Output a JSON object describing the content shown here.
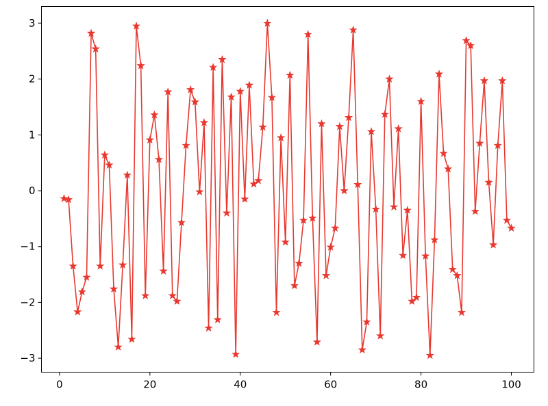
{
  "chart_data": {
    "type": "line",
    "title": "",
    "xlabel": "",
    "ylabel": "",
    "xlim": [
      -4,
      105
    ],
    "ylim": [
      -3.25,
      3.3
    ],
    "xticks": [
      0,
      20,
      40,
      60,
      80,
      100
    ],
    "yticks": [
      -3,
      -2,
      -1,
      0,
      1,
      2,
      3
    ],
    "xtick_labels": [
      "0",
      "20",
      "40",
      "60",
      "80",
      "100"
    ],
    "ytick_labels": [
      "−3",
      "−2",
      "−1",
      "0",
      "1",
      "2",
      "3"
    ],
    "grid": false,
    "legend": "none",
    "marker": "star",
    "color": "#e8382f",
    "series": [
      {
        "x": [
          1,
          2,
          3,
          4,
          5,
          6,
          7,
          8,
          9,
          10,
          11,
          12,
          13,
          14,
          15,
          16,
          17,
          18,
          19,
          20,
          21,
          22,
          23,
          24,
          25,
          26,
          27,
          28,
          29,
          30,
          31,
          32,
          33,
          34,
          35,
          36,
          37,
          38,
          39,
          40,
          41,
          42,
          43,
          44,
          45,
          46,
          47,
          48,
          49,
          50,
          51,
          52,
          53,
          54,
          55,
          56,
          57,
          58,
          59,
          60,
          61,
          62,
          63,
          64,
          65,
          66,
          67,
          68,
          69,
          70,
          71,
          72,
          73,
          74,
          75,
          76,
          77,
          78,
          79,
          80,
          81,
          82,
          83,
          84,
          85,
          86,
          87,
          88,
          89,
          90,
          91,
          92,
          93,
          94,
          95,
          96,
          97,
          98,
          99,
          100
        ],
        "values": [
          -0.14,
          -0.16,
          -1.35,
          -2.17,
          -1.81,
          -1.55,
          2.82,
          2.54,
          -1.35,
          0.64,
          0.46,
          -1.76,
          -2.8,
          -1.33,
          0.28,
          -2.66,
          2.95,
          2.24,
          -1.88,
          0.91,
          1.36,
          0.56,
          -1.44,
          1.77,
          -1.88,
          -1.98,
          -0.57,
          0.81,
          1.81,
          1.59,
          -0.02,
          1.22,
          -2.46,
          2.21,
          -2.31,
          2.35,
          -0.4,
          1.68,
          -2.93,
          1.78,
          -0.15,
          1.89,
          0.12,
          0.18,
          1.14,
          3.0,
          1.67,
          -2.18,
          0.95,
          -0.92,
          2.07,
          -1.7,
          -1.3,
          -0.53,
          2.8,
          -0.49,
          -2.71,
          1.2,
          -1.52,
          -1.01,
          -0.67,
          1.15,
          0.0,
          1.31,
          2.88,
          0.11,
          -2.85,
          -2.35,
          1.06,
          -0.33,
          -2.6,
          1.37,
          2.0,
          -0.29,
          1.11,
          -1.16,
          -0.35,
          -1.98,
          -1.91,
          1.6,
          -1.17,
          -2.95,
          -0.88,
          2.09,
          0.67,
          0.39,
          -1.41,
          -1.52,
          -2.18,
          2.69,
          2.6,
          -0.37,
          0.85,
          1.97,
          0.15,
          -0.97,
          0.81,
          1.97,
          -0.53,
          -0.67
        ]
      }
    ]
  }
}
